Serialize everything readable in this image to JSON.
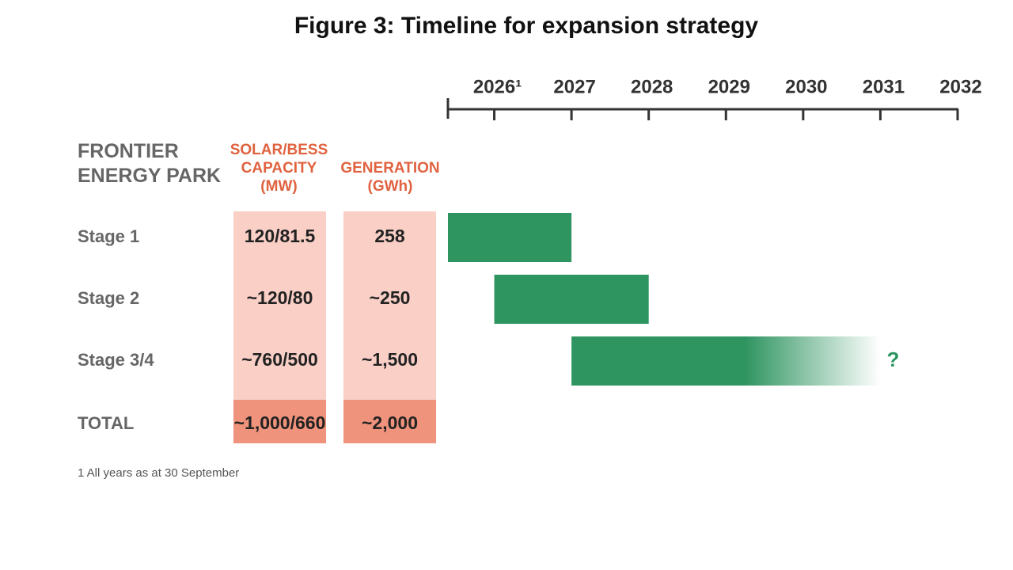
{
  "chart_data": {
    "type": "gantt",
    "title": "Figure 3: Timeline for expansion strategy",
    "row_header": "FRONTIER ENERGY PARK",
    "columns": [
      "SOLAR/BESS CAPACITY (MW)",
      "GENERATION (GWh)"
    ],
    "rows": [
      {
        "label": "Stage 1",
        "cells": [
          "120/81.5",
          "258"
        ],
        "start": 2025.4,
        "end": 2027
      },
      {
        "label": "Stage 2",
        "cells": [
          "~120/80",
          "~250"
        ],
        "start": 2026,
        "end": 2028
      },
      {
        "label": "Stage 3/4",
        "cells": [
          "~760/500",
          "~1,500"
        ],
        "start": 2027,
        "end": 2031,
        "fade_out": true
      },
      {
        "label": "TOTAL",
        "cells": [
          "~1,000/660",
          "~2,000"
        ]
      }
    ],
    "xlim": [
      2025.4,
      2032
    ],
    "xticks": [
      {
        "value": 2026,
        "label": "2026¹"
      },
      2027,
      2028,
      2029,
      2030,
      2031,
      2032
    ],
    "color": "#2e9460",
    "cell_color": "#f9cfc6",
    "total_color": "#f0937c",
    "annotation": "?",
    "footnote": "1 All years as at 30 September"
  }
}
